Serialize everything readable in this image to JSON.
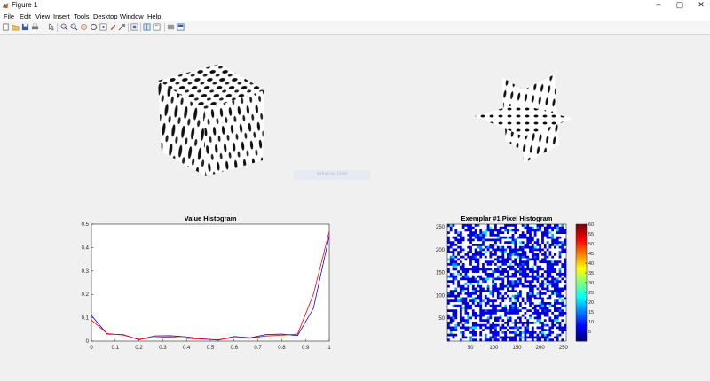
{
  "window": {
    "title": "Figure 1",
    "controls": {
      "minimize": "–",
      "maximize": "▢",
      "close": "✕"
    }
  },
  "menu": [
    "File",
    "Edit",
    "View",
    "Insert",
    "Tools",
    "Desktop",
    "Window",
    "Help"
  ],
  "toolbar": [
    "new-figure-icon",
    "open-file-icon",
    "save-icon",
    "print-icon",
    "pointer-icon",
    "zoom-in-icon",
    "zoom-out-icon",
    "pan-icon",
    "rotate-icon",
    "data-cursor-icon",
    "brush-icon",
    "link-icon",
    "colorbar-icon",
    "legend-icon",
    "hide-plot-tools-icon",
    "show-plot-tools-icon"
  ],
  "ghost_label": "Window Grid",
  "colors": {
    "series1": "#0000ff",
    "series2": "#ff0000"
  },
  "chart_data": [
    {
      "type": "line",
      "title": "Value Histogram",
      "xlabel": "",
      "ylabel": "",
      "xlim": [
        0,
        1
      ],
      "ylim": [
        0,
        0.5
      ],
      "xticks": [
        "0",
        "0.1",
        "0.2",
        "0.3",
        "0.4",
        "0.5",
        "0.6",
        "0.7",
        "0.8",
        "0.9",
        "1"
      ],
      "yticks": [
        "0",
        "0.05",
        "0.1",
        "0.15",
        "0.2",
        "0.25",
        "0.3",
        "0.35",
        "0.4",
        "0.45",
        "0.5"
      ],
      "x": [
        0,
        0.0667,
        0.1333,
        0.2,
        0.2667,
        0.3333,
        0.4,
        0.4667,
        0.5333,
        0.6,
        0.6667,
        0.7333,
        0.8,
        0.8667,
        0.9333,
        1
      ],
      "series": [
        {
          "color": "#0000ff",
          "values": [
            0.11,
            0.03,
            0.028,
            0.006,
            0.022,
            0.023,
            0.018,
            0.01,
            0.004,
            0.02,
            0.014,
            0.028,
            0.03,
            0.024,
            0.14,
            0.45
          ]
        },
        {
          "color": "#ff0000",
          "values": [
            0.09,
            0.032,
            0.026,
            0.008,
            0.015,
            0.018,
            0.012,
            0.008,
            0.006,
            0.015,
            0.012,
            0.022,
            0.025,
            0.03,
            0.2,
            0.47
          ]
        }
      ],
      "grid": false
    },
    {
      "type": "heatmap",
      "title": "Exemplar #1 Pixel Histogram",
      "xlim": [
        0,
        256
      ],
      "ylim": [
        0,
        256
      ],
      "xticks": [
        "50",
        "100",
        "150",
        "200",
        "250"
      ],
      "yticks": [
        "50",
        "100",
        "150",
        "200",
        "250"
      ],
      "colorbar": {
        "min": 0,
        "max": 60,
        "ticks": [
          "5",
          "10",
          "15",
          "20",
          "25",
          "30",
          "35",
          "40",
          "45",
          "50",
          "55",
          "60"
        ],
        "colormap": "jet"
      }
    }
  ],
  "views3d": [
    {
      "label": "",
      "shape": "cube"
    },
    {
      "label": "",
      "shape": "orthogonal-slices"
    }
  ]
}
